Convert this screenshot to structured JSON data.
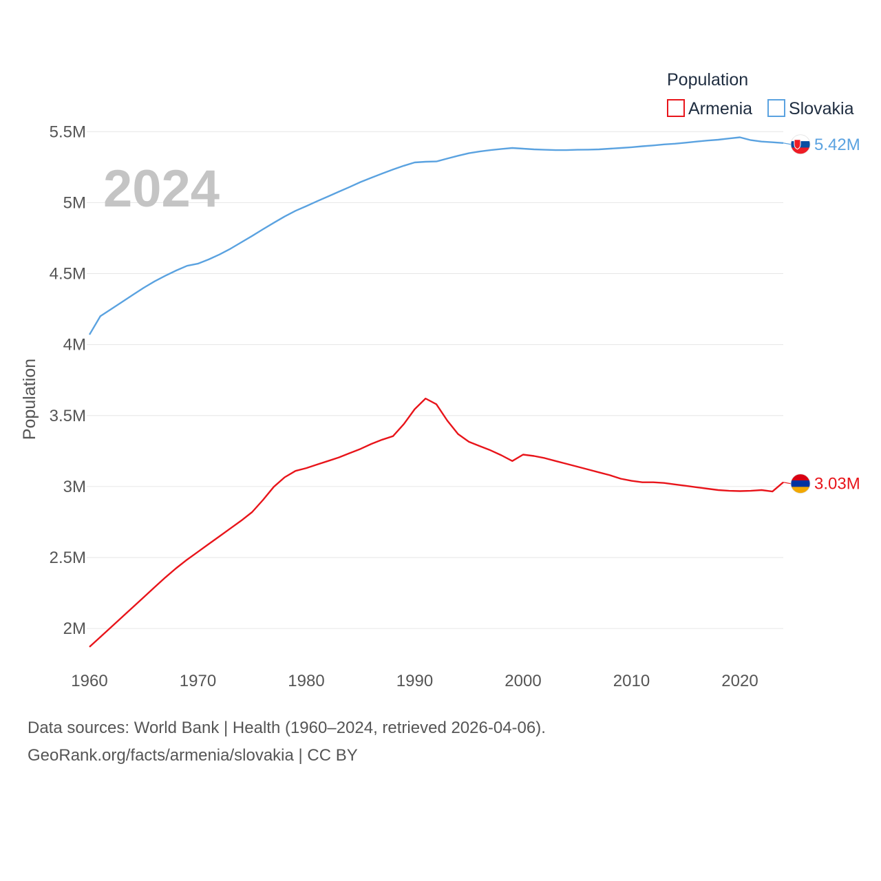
{
  "legend": {
    "title": "Population",
    "items": [
      "Armenia",
      "Slovakia"
    ]
  },
  "year_badge": "2024",
  "sources": {
    "line1": "Data sources: World Bank | Health (1960–2024, retrieved 2026-04-06).",
    "line2": "GeoRank.org/facts/armenia/slovakia | CC BY"
  },
  "chart_data": {
    "type": "line",
    "title": "",
    "xlabel": "",
    "ylabel": "Population",
    "xlim": [
      1960,
      2024
    ],
    "ylim": [
      1700000,
      5700000
    ],
    "x_ticks": [
      1960,
      1970,
      1980,
      1990,
      2000,
      2010,
      2020
    ],
    "y_ticks": [
      {
        "value": 2000000,
        "label": "2M"
      },
      {
        "value": 2500000,
        "label": "2.5M"
      },
      {
        "value": 3000000,
        "label": "3M"
      },
      {
        "value": 3500000,
        "label": "3.5M"
      },
      {
        "value": 4000000,
        "label": "4M"
      },
      {
        "value": 4500000,
        "label": "4.5M"
      },
      {
        "value": 5000000,
        "label": "5M"
      },
      {
        "value": 5500000,
        "label": "5.5M"
      }
    ],
    "grid": true,
    "legend_position": "top-right",
    "series": [
      {
        "name": "Armenia",
        "color": "#e8141a",
        "end_label": "3.03M",
        "flag": "armenia-flag",
        "x": [
          1960,
          1961,
          1962,
          1963,
          1964,
          1965,
          1966,
          1967,
          1968,
          1969,
          1970,
          1971,
          1972,
          1973,
          1974,
          1975,
          1976,
          1977,
          1978,
          1979,
          1980,
          1981,
          1982,
          1983,
          1984,
          1985,
          1986,
          1987,
          1988,
          1989,
          1990,
          1991,
          1992,
          1993,
          1994,
          1995,
          1996,
          1997,
          1998,
          1999,
          2000,
          2001,
          2002,
          2003,
          2004,
          2005,
          2006,
          2007,
          2008,
          2009,
          2010,
          2011,
          2012,
          2013,
          2014,
          2015,
          2016,
          2017,
          2018,
          2019,
          2020,
          2021,
          2022,
          2023,
          2024
        ],
        "values": [
          1870000,
          1940000,
          2010000,
          2080000,
          2150000,
          2220000,
          2290000,
          2360000,
          2425000,
          2485000,
          2540000,
          2595000,
          2650000,
          2705000,
          2760000,
          2820000,
          2905000,
          2998000,
          3065000,
          3110000,
          3130000,
          3155000,
          3180000,
          3205000,
          3235000,
          3265000,
          3300000,
          3330000,
          3355000,
          3440000,
          3545000,
          3620000,
          3580000,
          3465000,
          3370000,
          3315000,
          3285000,
          3255000,
          3220000,
          3180000,
          3225000,
          3215000,
          3200000,
          3180000,
          3160000,
          3140000,
          3120000,
          3100000,
          3080000,
          3055000,
          3040000,
          3030000,
          3030000,
          3025000,
          3015000,
          3005000,
          2995000,
          2985000,
          2975000,
          2970000,
          2968000,
          2970000,
          2975000,
          2965000,
          3030000
        ]
      },
      {
        "name": "Slovakia",
        "color": "#5aa2e0",
        "end_label": "5.42M",
        "flag": "slovakia-flag",
        "x": [
          1960,
          1961,
          1962,
          1963,
          1964,
          1965,
          1966,
          1967,
          1968,
          1969,
          1970,
          1971,
          1972,
          1973,
          1974,
          1975,
          1976,
          1977,
          1978,
          1979,
          1980,
          1981,
          1982,
          1983,
          1984,
          1985,
          1986,
          1987,
          1988,
          1989,
          1990,
          1991,
          1992,
          1993,
          1994,
          1995,
          1996,
          1997,
          1998,
          1999,
          2000,
          2001,
          2002,
          2003,
          2004,
          2005,
          2006,
          2007,
          2008,
          2009,
          2010,
          2011,
          2012,
          2013,
          2014,
          2015,
          2016,
          2017,
          2018,
          2019,
          2020,
          2021,
          2022,
          2023,
          2024
        ],
        "values": [
          4070000,
          4200000,
          4250000,
          4300000,
          4350000,
          4400000,
          4445000,
          4485000,
          4522000,
          4555000,
          4570000,
          4600000,
          4635000,
          4675000,
          4720000,
          4765000,
          4812000,
          4858000,
          4902000,
          4942000,
          4975000,
          5010000,
          5043000,
          5077000,
          5110000,
          5145000,
          5175000,
          5205000,
          5233000,
          5260000,
          5283000,
          5288000,
          5290000,
          5310000,
          5330000,
          5348000,
          5360000,
          5370000,
          5378000,
          5385000,
          5380000,
          5375000,
          5372000,
          5370000,
          5370000,
          5372000,
          5373000,
          5375000,
          5380000,
          5385000,
          5390000,
          5397000,
          5403000,
          5410000,
          5415000,
          5422000,
          5430000,
          5437000,
          5443000,
          5452000,
          5460000,
          5440000,
          5430000,
          5425000,
          5420000
        ]
      }
    ]
  }
}
